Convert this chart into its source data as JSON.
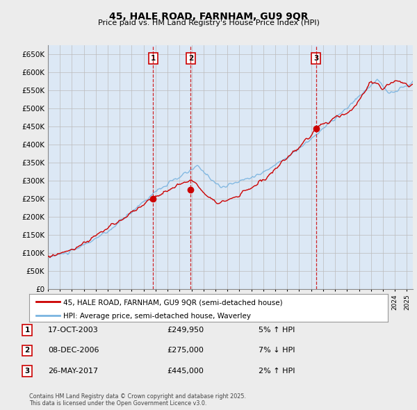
{
  "title": "45, HALE ROAD, FARNHAM, GU9 9QR",
  "subtitle": "Price paid vs. HM Land Registry's House Price Index (HPI)",
  "ylabel_ticks": [
    0,
    50000,
    100000,
    150000,
    200000,
    250000,
    300000,
    350000,
    400000,
    450000,
    500000,
    550000,
    600000,
    650000
  ],
  "ylim": [
    0,
    675000
  ],
  "xlim_start": 1995.0,
  "xlim_end": 2025.5,
  "line1_label": "45, HALE ROAD, FARNHAM, GU9 9QR (semi-detached house)",
  "line2_label": "HPI: Average price, semi-detached house, Waverley",
  "line1_color": "#cc0000",
  "line2_color": "#7ab4e0",
  "sale_points": [
    {
      "num": 1,
      "year": 2003.79,
      "price": 249950,
      "date": "17-OCT-2003",
      "pct": "5%",
      "dir": "↑"
    },
    {
      "num": 2,
      "year": 2006.93,
      "price": 275000,
      "date": "08-DEC-2006",
      "pct": "7%",
      "dir": "↓"
    },
    {
      "num": 3,
      "year": 2017.4,
      "price": 445000,
      "date": "26-MAY-2017",
      "pct": "2%",
      "dir": "↑"
    }
  ],
  "footnote": "Contains HM Land Registry data © Crown copyright and database right 2025.\nThis data is licensed under the Open Government Licence v3.0.",
  "bg_color": "#ececec",
  "plot_bg_color": "#dce8f5",
  "grid_color": "#bbbbbb"
}
